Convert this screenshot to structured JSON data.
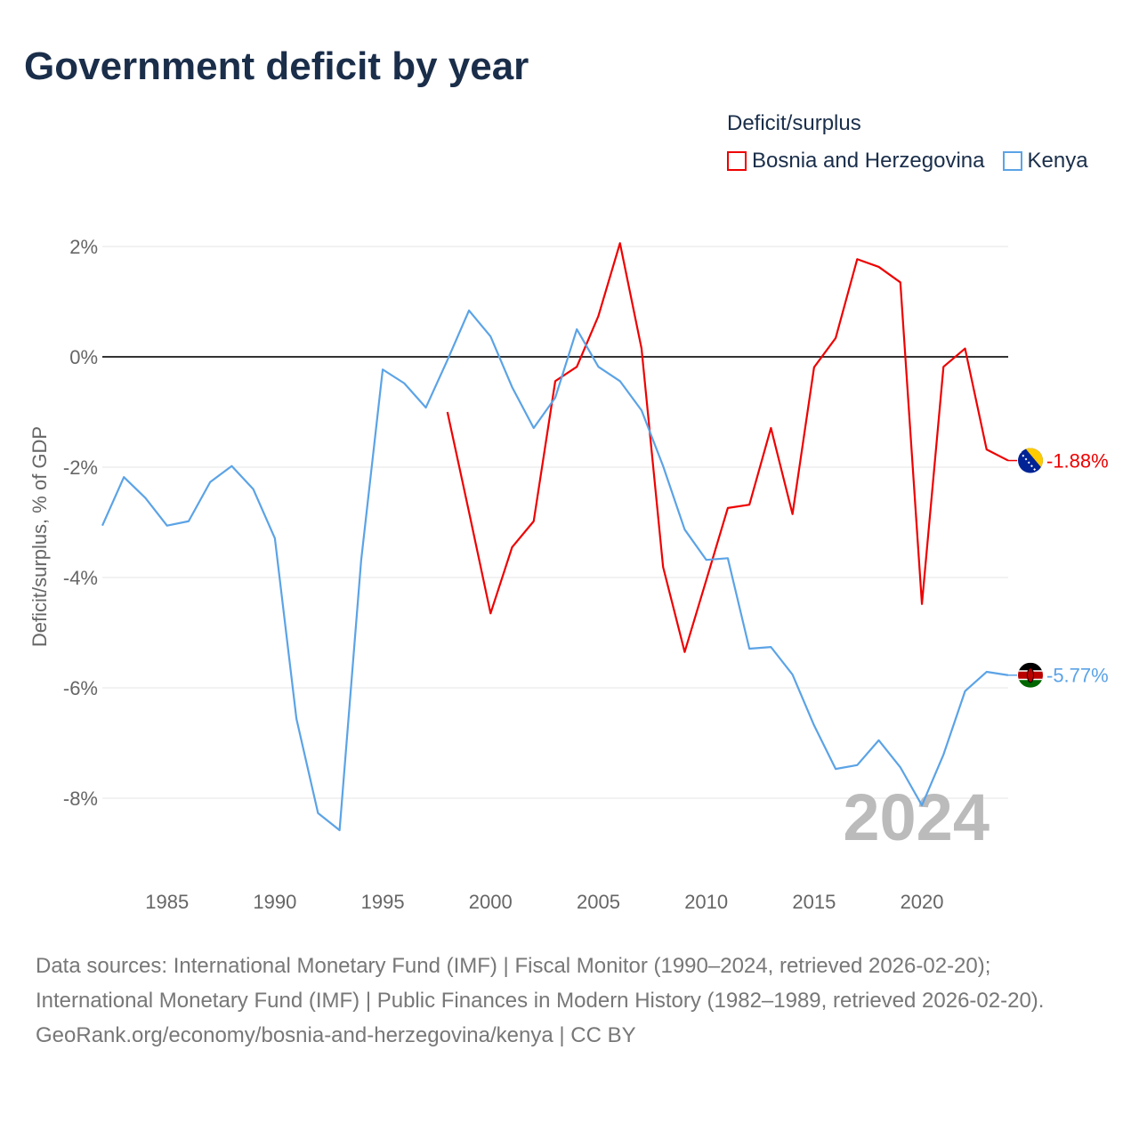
{
  "title": "Government deficit by year",
  "legend_title": "Deficit/surplus",
  "year_label": "2024",
  "footer": {
    "sources": "Data sources: International Monetary Fund (IMF) | Fiscal Monitor (1990–2024, retrieved 2026-02-20); International Monetary Fund (IMF) | Public Finances in Modern History (1982–1989, retrieved 2026-02-20).",
    "credit": "GeoRank.org/economy/bosnia-and-herzegovina/kenya | CC BY"
  },
  "chart_data": {
    "type": "line",
    "title": "Government deficit by year",
    "xlabel": "",
    "ylabel": "Deficit/surplus, % of GDP",
    "xlim": [
      1982,
      2024
    ],
    "ylim": [
      -9.2,
      2.3
    ],
    "yticks": [
      2,
      0,
      -2,
      -4,
      -6,
      -8
    ],
    "ytick_labels": [
      "2%",
      "0%",
      "-2%",
      "-4%",
      "-6%",
      "-8%"
    ],
    "xticks": [
      1985,
      1990,
      1995,
      2000,
      2005,
      2010,
      2015,
      2020
    ],
    "xtick_labels": [
      "1985",
      "1990",
      "1995",
      "2000",
      "2005",
      "2010",
      "2015",
      "2020"
    ],
    "grid": true,
    "legend_position": "top-right",
    "series": [
      {
        "name": "Bosnia and Herzegovina",
        "color": "#ee0000",
        "end_label": "-1.88%",
        "x": [
          1998,
          1999,
          2000,
          2001,
          2002,
          2003,
          2004,
          2005,
          2006,
          2007,
          2008,
          2009,
          2010,
          2011,
          2012,
          2013,
          2014,
          2015,
          2016,
          2017,
          2018,
          2019,
          2020,
          2021,
          2022,
          2023,
          2024
        ],
        "values": [
          -1.0,
          -2.81,
          -4.65,
          -3.45,
          -2.98,
          -0.44,
          -0.18,
          0.74,
          2.06,
          0.15,
          -3.81,
          -5.35,
          -4.05,
          -2.74,
          -2.68,
          -1.29,
          -2.85,
          -0.19,
          0.34,
          1.77,
          1.63,
          1.35,
          -4.48,
          -0.18,
          0.15,
          -1.68,
          -1.88
        ]
      },
      {
        "name": "Kenya",
        "color": "#5ba3e6",
        "end_label": "-5.77%",
        "x": [
          1982,
          1983,
          1984,
          1985,
          1986,
          1987,
          1988,
          1989,
          1990,
          1991,
          1992,
          1993,
          1994,
          1995,
          1996,
          1997,
          1998,
          1999,
          2000,
          2001,
          2002,
          2003,
          2004,
          2005,
          2006,
          2007,
          2008,
          2009,
          2010,
          2011,
          2012,
          2013,
          2014,
          2015,
          2016,
          2017,
          2018,
          2019,
          2020,
          2021,
          2022,
          2023,
          2024
        ],
        "values": [
          -3.06,
          -2.18,
          -2.56,
          -3.06,
          -2.98,
          -2.27,
          -1.98,
          -2.4,
          -3.29,
          -6.56,
          -8.27,
          -8.58,
          -3.69,
          -0.23,
          -0.48,
          -0.92,
          -0.06,
          0.84,
          0.37,
          -0.55,
          -1.29,
          -0.74,
          0.5,
          -0.18,
          -0.44,
          -0.97,
          -1.98,
          -3.13,
          -3.68,
          -3.65,
          -5.29,
          -5.26,
          -5.76,
          -6.68,
          -7.47,
          -7.4,
          -6.95,
          -7.44,
          -8.13,
          -7.21,
          -6.06,
          -5.71,
          -5.77
        ]
      }
    ]
  }
}
